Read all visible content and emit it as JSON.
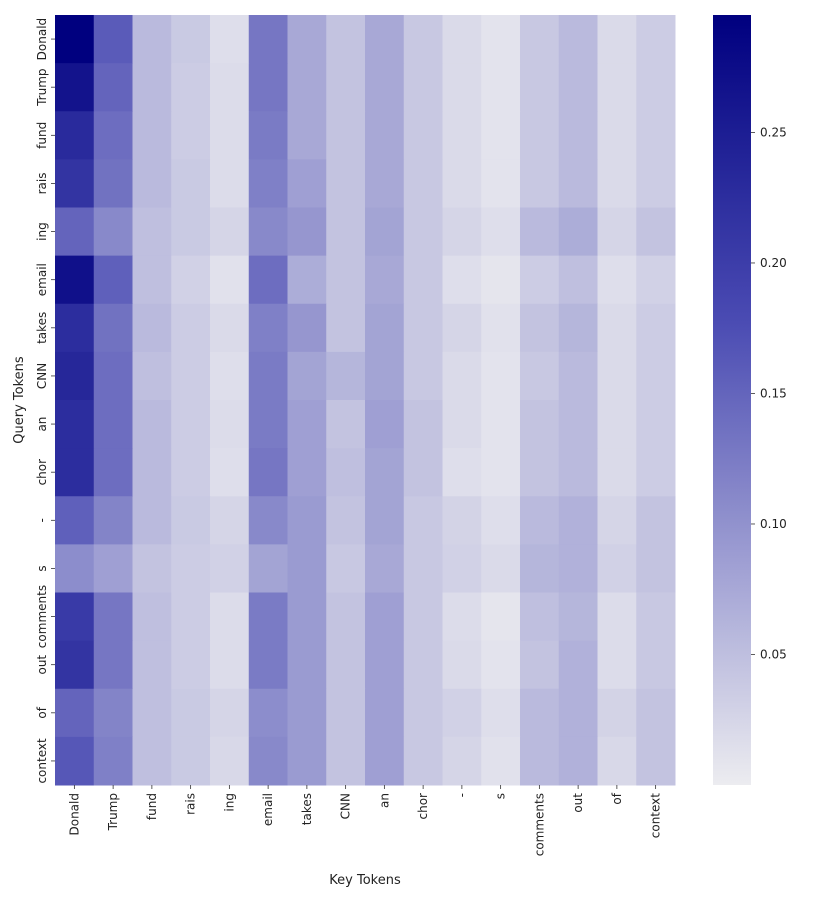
{
  "chart_data": {
    "type": "heatmap",
    "title": "",
    "xlabel": "Key Tokens",
    "ylabel": "Query Tokens",
    "x_tokens": [
      "Donald",
      "Trump",
      "fund",
      "rais",
      "ing",
      "email",
      "takes",
      "CNN",
      "an",
      "chor",
      "-",
      "s",
      "comments",
      "out",
      "of",
      "context"
    ],
    "y_tokens": [
      "Donald",
      "Trump",
      "fund",
      "rais",
      "ing",
      "email",
      "takes",
      "CNN",
      "an",
      "chor",
      "-",
      "s",
      "comments",
      "out",
      "of",
      "context"
    ],
    "values": [
      [
        0.295,
        0.16,
        0.055,
        0.038,
        0.015,
        0.13,
        0.075,
        0.045,
        0.075,
        0.04,
        0.02,
        0.01,
        0.04,
        0.055,
        0.02,
        0.035
      ],
      [
        0.265,
        0.15,
        0.055,
        0.035,
        0.018,
        0.13,
        0.075,
        0.045,
        0.075,
        0.04,
        0.02,
        0.01,
        0.04,
        0.055,
        0.02,
        0.035
      ],
      [
        0.23,
        0.14,
        0.055,
        0.035,
        0.018,
        0.125,
        0.075,
        0.045,
        0.075,
        0.04,
        0.02,
        0.01,
        0.04,
        0.055,
        0.02,
        0.035
      ],
      [
        0.215,
        0.135,
        0.055,
        0.038,
        0.018,
        0.12,
        0.085,
        0.045,
        0.075,
        0.04,
        0.02,
        0.01,
        0.04,
        0.055,
        0.02,
        0.035
      ],
      [
        0.15,
        0.11,
        0.05,
        0.038,
        0.025,
        0.11,
        0.095,
        0.045,
        0.08,
        0.04,
        0.025,
        0.015,
        0.055,
        0.07,
        0.025,
        0.045
      ],
      [
        0.27,
        0.155,
        0.05,
        0.03,
        0.012,
        0.14,
        0.07,
        0.045,
        0.075,
        0.04,
        0.015,
        0.008,
        0.035,
        0.05,
        0.015,
        0.03
      ],
      [
        0.225,
        0.135,
        0.055,
        0.035,
        0.02,
        0.12,
        0.095,
        0.045,
        0.08,
        0.04,
        0.025,
        0.012,
        0.045,
        0.06,
        0.02,
        0.035
      ],
      [
        0.235,
        0.14,
        0.05,
        0.035,
        0.015,
        0.125,
        0.08,
        0.06,
        0.08,
        0.04,
        0.02,
        0.01,
        0.04,
        0.055,
        0.02,
        0.035
      ],
      [
        0.225,
        0.14,
        0.055,
        0.035,
        0.018,
        0.125,
        0.085,
        0.045,
        0.085,
        0.045,
        0.02,
        0.01,
        0.045,
        0.055,
        0.02,
        0.035
      ],
      [
        0.225,
        0.14,
        0.055,
        0.035,
        0.015,
        0.13,
        0.085,
        0.05,
        0.08,
        0.045,
        0.015,
        0.01,
        0.045,
        0.055,
        0.02,
        0.035
      ],
      [
        0.155,
        0.115,
        0.055,
        0.038,
        0.025,
        0.11,
        0.09,
        0.045,
        0.08,
        0.04,
        0.028,
        0.015,
        0.055,
        0.065,
        0.025,
        0.045
      ],
      [
        0.105,
        0.085,
        0.045,
        0.035,
        0.03,
        0.08,
        0.09,
        0.04,
        0.075,
        0.04,
        0.03,
        0.02,
        0.06,
        0.065,
        0.03,
        0.045
      ],
      [
        0.205,
        0.13,
        0.05,
        0.035,
        0.018,
        0.125,
        0.09,
        0.045,
        0.085,
        0.04,
        0.018,
        0.008,
        0.05,
        0.06,
        0.018,
        0.04
      ],
      [
        0.215,
        0.13,
        0.05,
        0.035,
        0.018,
        0.125,
        0.09,
        0.045,
        0.085,
        0.04,
        0.02,
        0.01,
        0.045,
        0.065,
        0.018,
        0.04
      ],
      [
        0.15,
        0.115,
        0.05,
        0.038,
        0.025,
        0.105,
        0.09,
        0.045,
        0.085,
        0.04,
        0.03,
        0.015,
        0.055,
        0.065,
        0.028,
        0.045
      ],
      [
        0.165,
        0.12,
        0.05,
        0.038,
        0.022,
        0.11,
        0.09,
        0.045,
        0.085,
        0.04,
        0.025,
        0.012,
        0.055,
        0.065,
        0.022,
        0.045
      ]
    ],
    "colormap": {
      "low": "#ececf0",
      "mid": "#4b4cb3",
      "high": "#00007f"
    },
    "colorbar": {
      "min": 0.0,
      "max": 0.295,
      "ticks": [
        0.05,
        0.1,
        0.15,
        0.2,
        0.25
      ],
      "tick_labels": [
        "0.05",
        "0.10",
        "0.15",
        "0.20",
        "0.25"
      ]
    },
    "grid": false,
    "legend": "none"
  }
}
